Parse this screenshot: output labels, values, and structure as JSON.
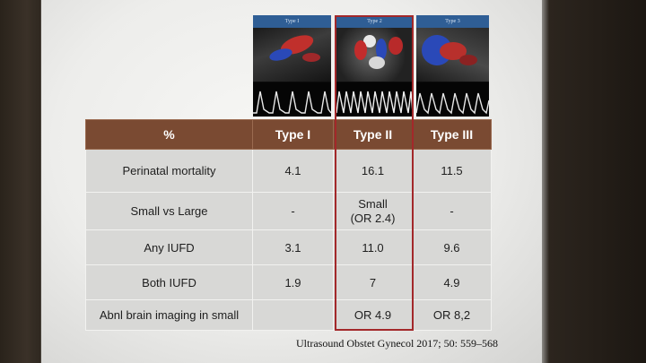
{
  "panels": [
    {
      "label": "Type I"
    },
    {
      "label": "Type 2"
    },
    {
      "label": "Type 3"
    }
  ],
  "table": {
    "headers": [
      "%",
      "Type I",
      "Type II",
      "Type III"
    ],
    "rows": [
      {
        "label": "Perinatal mortality",
        "t1": "4.1",
        "t2": "16.1",
        "t3": "11.5"
      },
      {
        "label": "Small vs Large",
        "t1": "-",
        "t2a": "Small",
        "t2b": "(OR 2.4)",
        "t3": "-"
      },
      {
        "label": "Any IUFD",
        "t1": "3.1",
        "t2": "11.0",
        "t3": "9.6"
      },
      {
        "label": "Both IUFD",
        "t1": "1.9",
        "t2": "7",
        "t3": "4.9"
      },
      {
        "label": "Abnl brain imaging in small",
        "t1": "",
        "t2": "OR 4.9",
        "t3": "OR 8,2"
      }
    ]
  },
  "citation": "Ultrasound Obstet Gynecol 2017; 50: 559–568",
  "colors": {
    "header": "#7a4a32",
    "cell": "#d8d8d6",
    "highlight": "#a3282a",
    "panel_header": "#2f5e95"
  }
}
